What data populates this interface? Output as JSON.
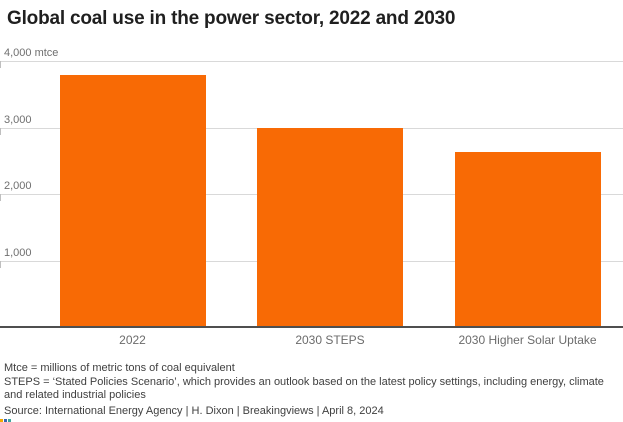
{
  "title": "Global coal use in the power sector, 2022 and 2030",
  "chart_data": {
    "type": "bar",
    "title": "Global coal use in the power sector, 2022 and 2030",
    "categories": [
      "2022",
      "2030 STEPS",
      "2030 Higher Solar Uptake"
    ],
    "values": [
      3790,
      3000,
      2630
    ],
    "unit": "mtce",
    "xlabel": "",
    "ylabel": "mtce",
    "ylim": [
      0,
      4000
    ],
    "grid": true,
    "legend": "none",
    "bar_color": "#f86a05",
    "yticks": [
      {
        "value": 1000,
        "label": "1,000"
      },
      {
        "value": 2000,
        "label": "2,000"
      },
      {
        "value": 3000,
        "label": "3,000"
      },
      {
        "value": 4000,
        "label": "4,000 mtce"
      }
    ]
  },
  "footnotes": {
    "mtce_note": "Mtce = millions of metric tons of coal equivalent",
    "steps_note": "STEPS = ‘Stated Policies Scenario’, which provides an outlook based on the latest policy settings, including energy, climate and related industrial policies",
    "source_line": "Source: International Energy Agency | H. Dixon | Breakingviews | April 8, 2024"
  },
  "colors": {
    "bar": "#f86a05",
    "gridline": "#d9d9d9",
    "axis_line": "#4f4f4f",
    "title_text": "#1f1f1f",
    "tick_text": "#6f6f6f",
    "note_text": "#3f3f3f",
    "corner_marks": [
      "#f2a900",
      "#3a66b0",
      "#3fa69d"
    ]
  }
}
